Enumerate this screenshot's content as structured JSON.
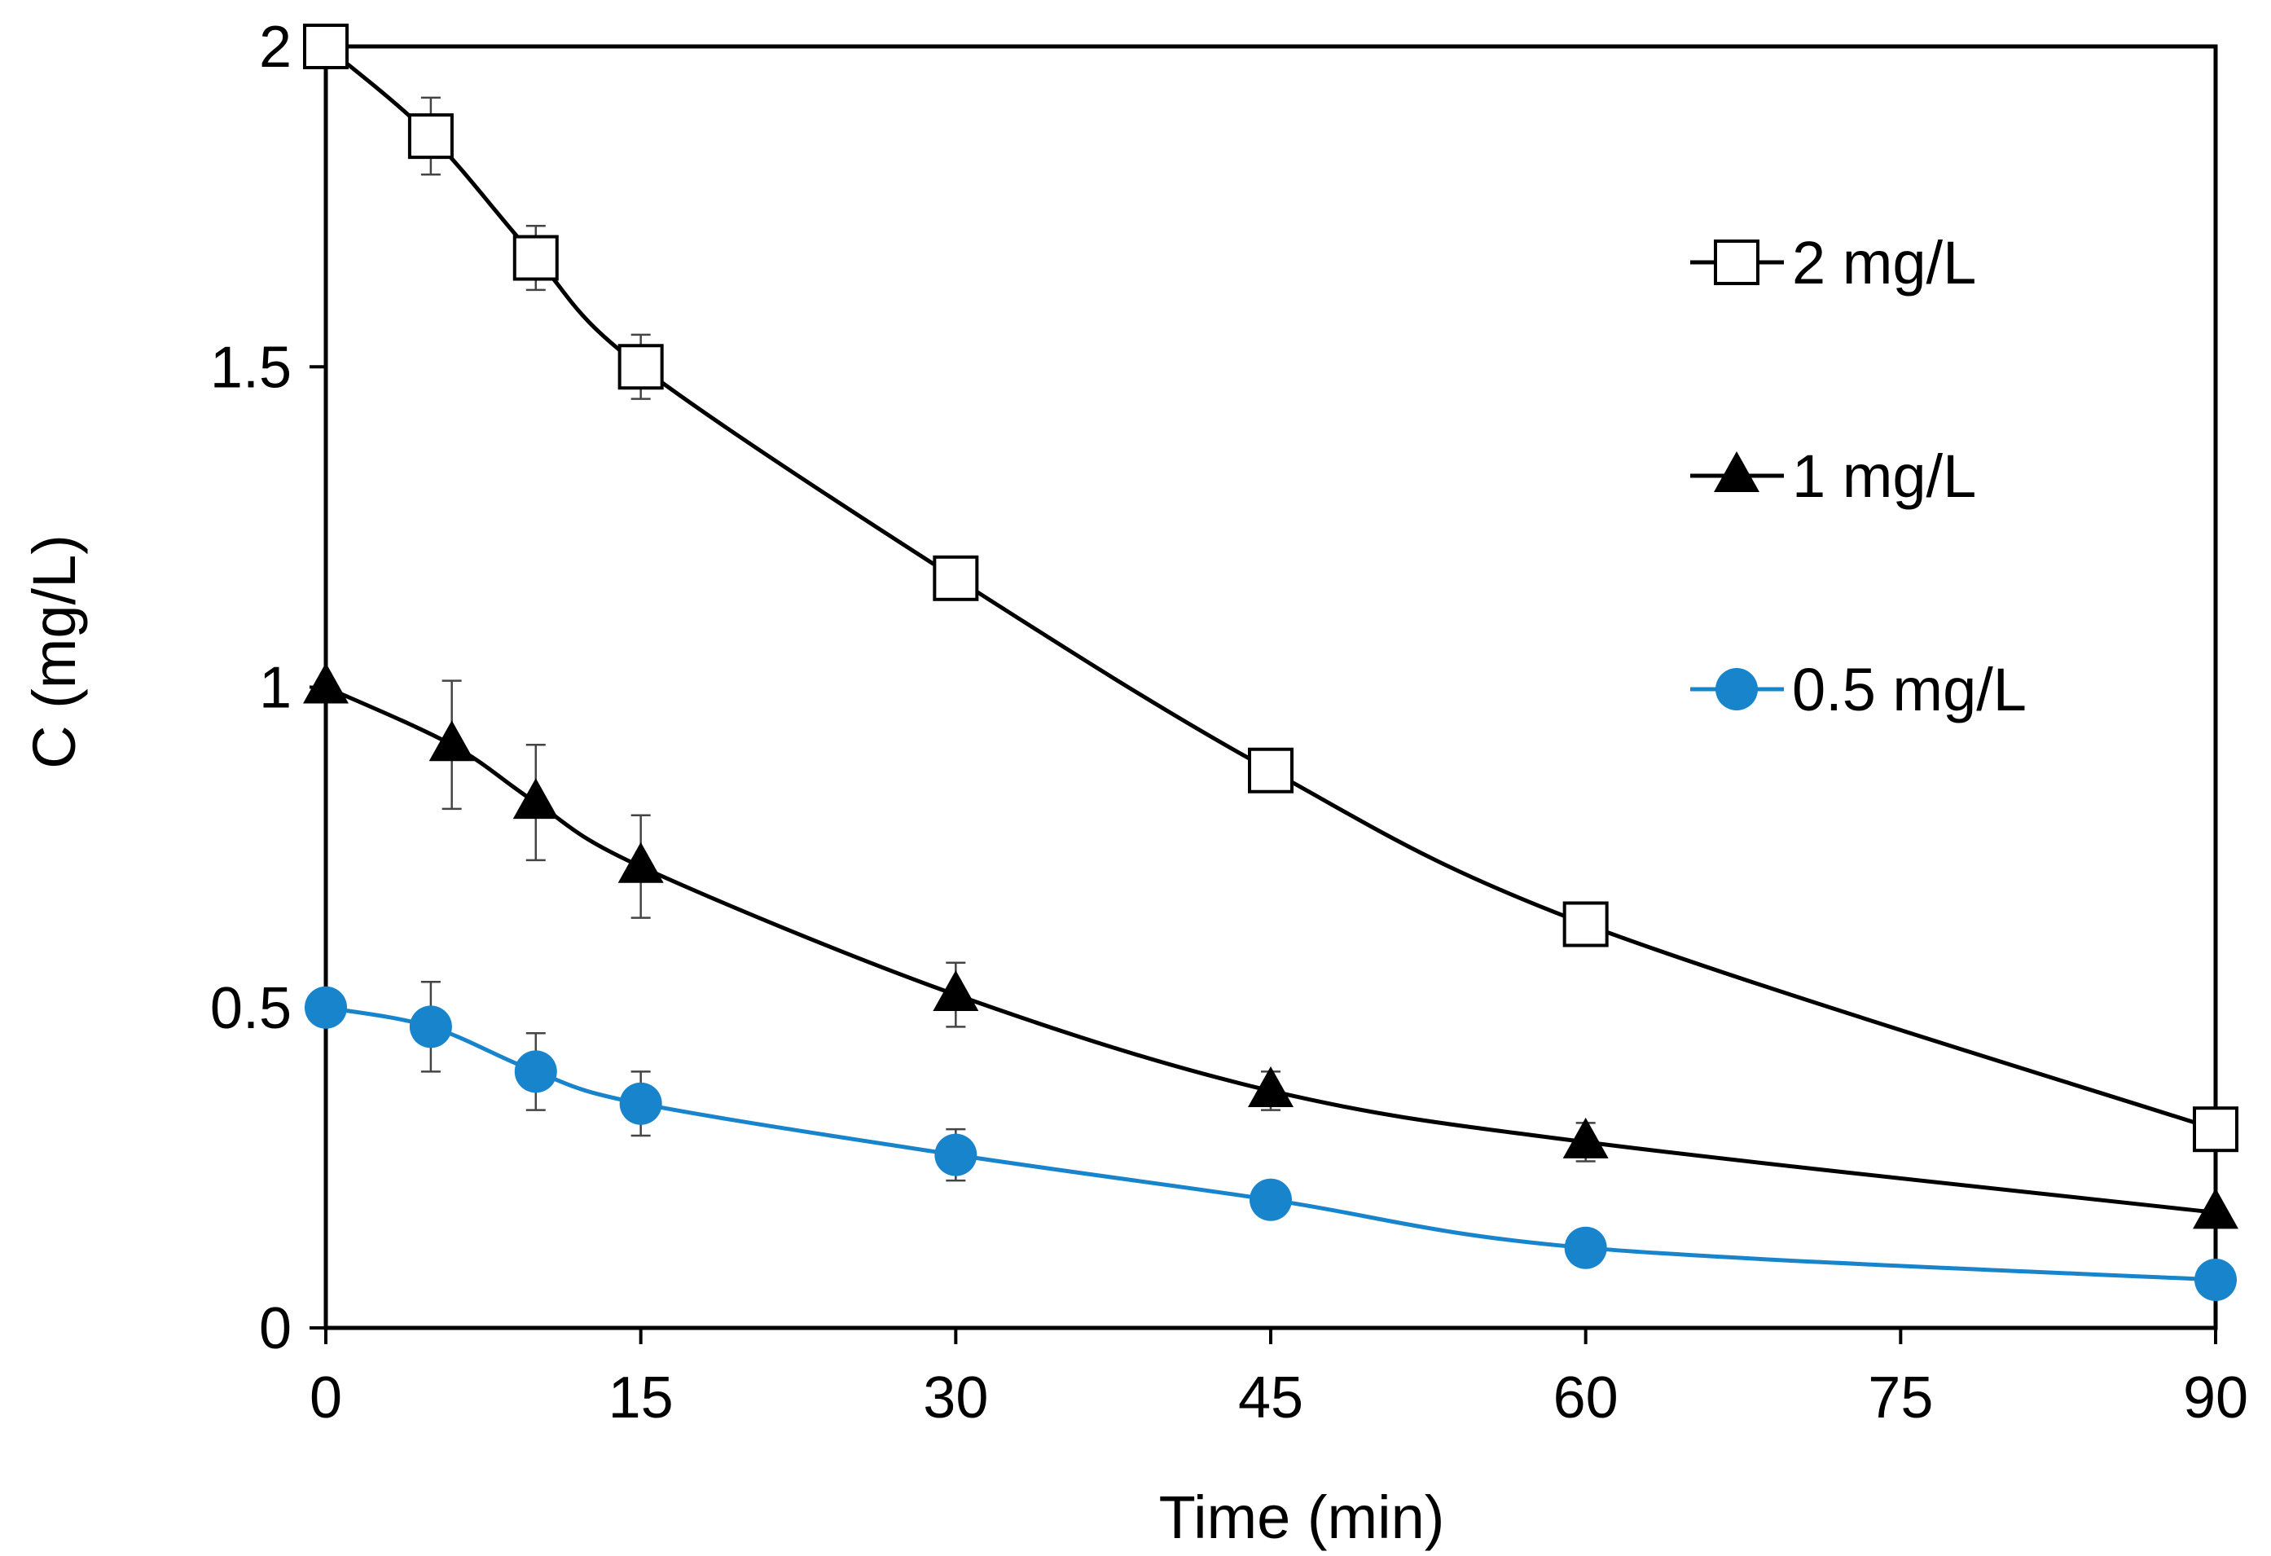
{
  "chart_data": {
    "type": "line",
    "title": "",
    "xlabel": "Time (min)",
    "ylabel": "C (mg/L)",
    "xlim": [
      0,
      90
    ],
    "ylim": [
      0,
      2
    ],
    "xticks": [
      0,
      15,
      30,
      45,
      60,
      75,
      90
    ],
    "xtick_labels": [
      "0",
      "15",
      "30",
      "45",
      "60",
      "75",
      "90"
    ],
    "yticks": [
      0,
      0.5,
      1,
      1.5,
      2
    ],
    "ytick_labels": [
      "0",
      "0.5",
      "1",
      "1.5",
      "2"
    ],
    "grid": false,
    "legend_position": "top-right",
    "series": [
      {
        "name": "2 mg/L",
        "marker": "square-open",
        "color": "#000000",
        "x": [
          0,
          5,
          10,
          15,
          30,
          45,
          60,
          90
        ],
        "y": [
          2.0,
          1.86,
          1.67,
          1.5,
          1.17,
          0.87,
          0.63,
          0.31
        ],
        "err": [
          0,
          0.06,
          0.05,
          0.05,
          0.03,
          0,
          0,
          0
        ]
      },
      {
        "name": "1 mg/L",
        "marker": "triangle-filled",
        "color": "#000000",
        "x": [
          0,
          6,
          10,
          15,
          30,
          45,
          60,
          90
        ],
        "y": [
          1.0,
          0.91,
          0.82,
          0.72,
          0.52,
          0.37,
          0.29,
          0.18
        ],
        "err": [
          0,
          0.1,
          0.09,
          0.08,
          0.05,
          0.03,
          0.03,
          0
        ]
      },
      {
        "name": "0.5 mg/L",
        "marker": "circle-filled",
        "color": "#1784cc",
        "x": [
          0,
          5,
          10,
          15,
          30,
          45,
          60,
          90
        ],
        "y": [
          0.5,
          0.47,
          0.4,
          0.35,
          0.27,
          0.2,
          0.125,
          0.075
        ],
        "err": [
          0,
          0.07,
          0.06,
          0.05,
          0.04,
          0,
          0,
          0
        ]
      }
    ]
  }
}
